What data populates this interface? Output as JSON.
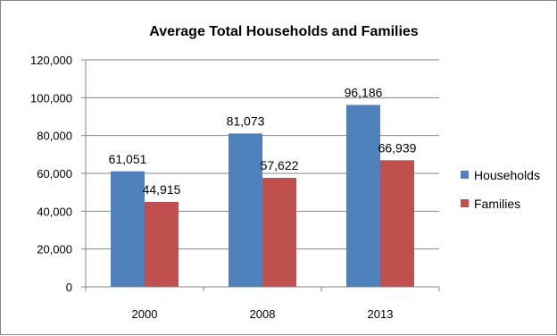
{
  "chart_data": {
    "type": "bar",
    "title": "Average Total Households and Families",
    "categories": [
      "2000",
      "2008",
      "2013"
    ],
    "series": [
      {
        "name": "Households",
        "values": [
          61051,
          81073,
          96186
        ],
        "labels": [
          "61,051",
          "81,073",
          "96,186"
        ],
        "color": "#4F81BD"
      },
      {
        "name": "Families",
        "values": [
          44915,
          57622,
          66939
        ],
        "labels": [
          "44,915",
          "57,622",
          "66,939"
        ],
        "color": "#C0504D"
      }
    ],
    "ylim": [
      0,
      120000
    ],
    "yticks": [
      0,
      20000,
      40000,
      60000,
      80000,
      100000,
      120000
    ],
    "ytick_labels": [
      "0",
      "20,000",
      "40,000",
      "60,000",
      "80,000",
      "100,000",
      "120,000"
    ],
    "xlabel": "",
    "ylabel": "",
    "grid": true,
    "legend_position": "right"
  }
}
